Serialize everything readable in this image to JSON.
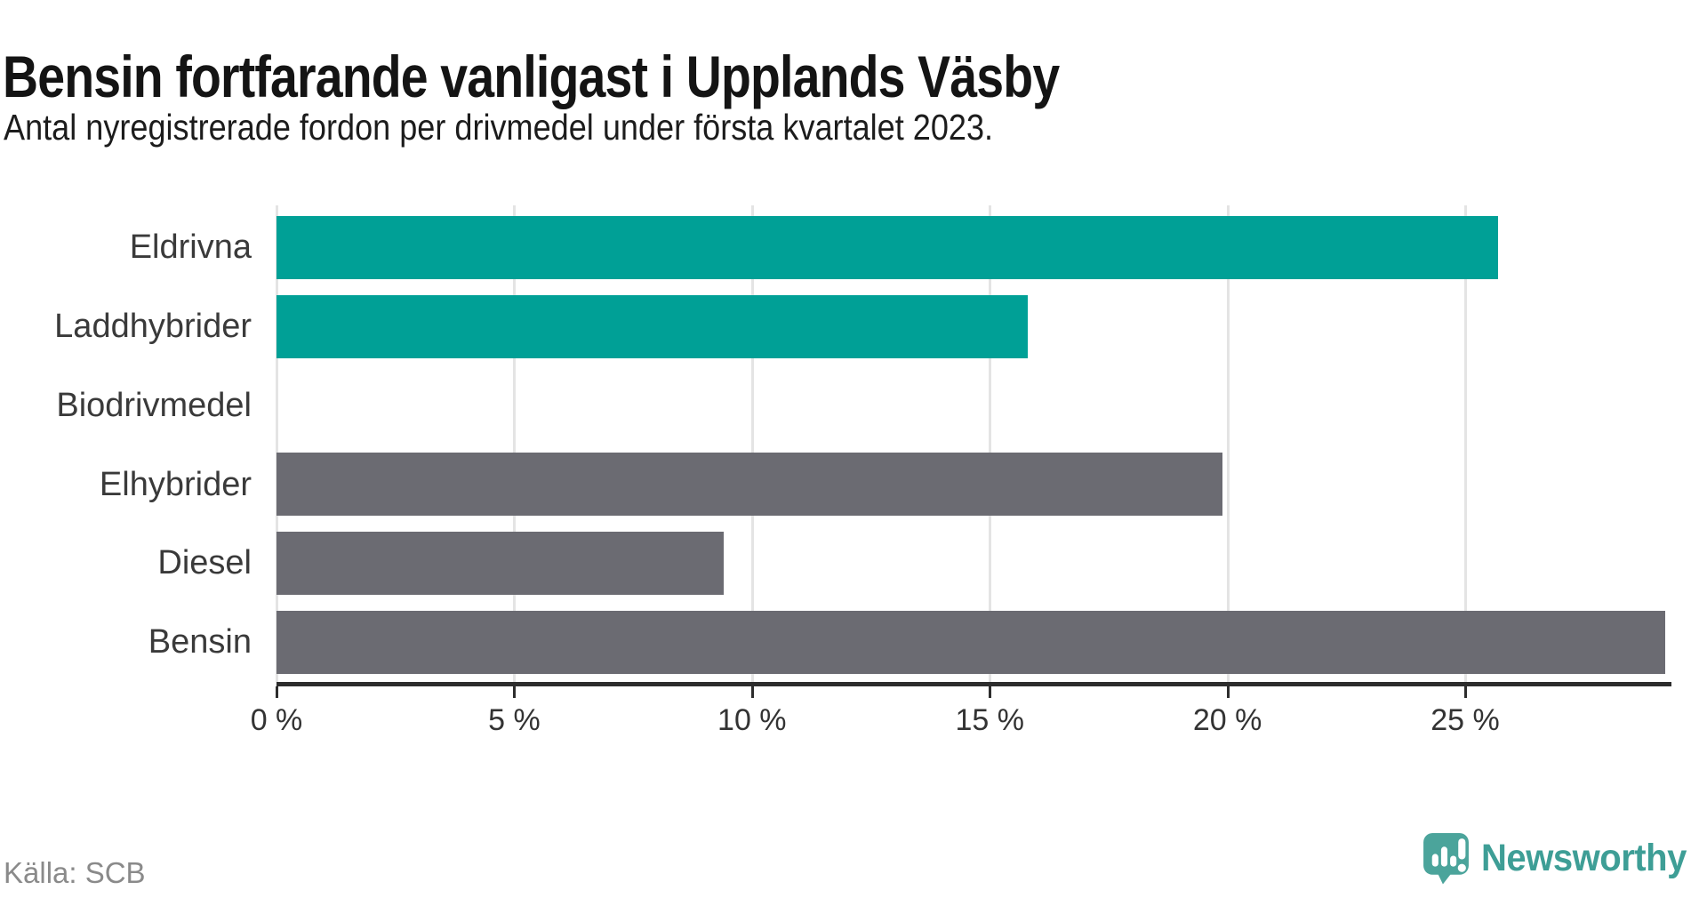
{
  "header": {
    "title": "Bensin fortfarande vanligast i Upplands Väsby",
    "subtitle": "Antal nyregistrerade fordon per drivmedel under första kvartalet 2023."
  },
  "chart_data": {
    "type": "bar",
    "orientation": "horizontal",
    "title": "Bensin fortfarande vanligast i Upplands Väsby",
    "subtitle": "Antal nyregistrerade fordon per drivmedel under första kvartalet 2023.",
    "categories": [
      "Eldrivna",
      "Laddhybrider",
      "Biodrivmedel",
      "Elhybrider",
      "Diesel",
      "Bensin"
    ],
    "values": [
      25.7,
      15.8,
      0,
      19.9,
      9.4,
      29.2
    ],
    "unit": "%",
    "bar_colors": [
      "#00a096",
      "#00a096",
      "#00a096",
      "#6b6b72",
      "#6b6b72",
      "#6b6b72"
    ],
    "xlabel": "",
    "ylabel": "",
    "xlim": [
      0,
      29.3
    ],
    "xticks": [
      0,
      5,
      10,
      15,
      20,
      25
    ],
    "xtick_labels": [
      "0 %",
      "5 %",
      "10 %",
      "15 %",
      "20 %",
      "25 %"
    ],
    "grid": "vertical-only",
    "legend": "none"
  },
  "footer": {
    "source": "Källa: SCB",
    "logo_text": "Newsworthy"
  },
  "colors": {
    "accent_teal": "#00a096",
    "neutral_gray": "#6b6b72",
    "grid": "#e4e4e4",
    "axis": "#2d2d2d",
    "logo": "#4ba49b",
    "logo_text": "#3e9e96"
  }
}
